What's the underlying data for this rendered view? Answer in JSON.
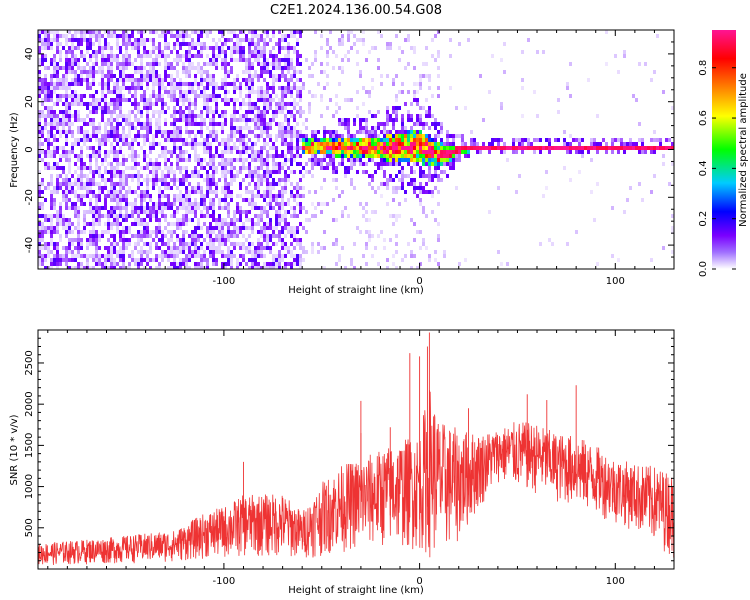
{
  "figure": {
    "title": "C2E1.2024.136.00.54.G08"
  },
  "chart_data": [
    {
      "type": "heatmap",
      "name": "spectrogram",
      "xlabel": "Height of straight line (km)",
      "ylabel": "Frequency (Hz)",
      "xlim": [
        -195,
        130
      ],
      "ylim": [
        -50,
        50
      ],
      "xticks": [
        -100,
        0,
        100
      ],
      "xtick_labels": [
        "-100",
        "0",
        "100"
      ],
      "yticks": [
        -40,
        -20,
        0,
        20,
        40
      ],
      "ytick_labels": [
        "-40",
        "-20",
        "0",
        "20",
        "40"
      ],
      "colorbar": {
        "label": "Normalized spectral amplitude",
        "range": [
          0,
          0.95
        ],
        "ticks": [
          0.0,
          0.2,
          0.4,
          0.6,
          0.8
        ],
        "tick_labels": [
          "0.0",
          "0.2",
          "0.4",
          "0.6",
          "0.8"
        ],
        "colormap": [
          "#ffffff",
          "#7a00ff",
          "#0000ff",
          "#00ccff",
          "#00ff00",
          "#ffff00",
          "#ff8000",
          "#ff0000",
          "#ff1493"
        ]
      },
      "noise_region_x": [
        -195,
        -60
      ],
      "transition_region_x": [
        -60,
        10
      ],
      "signal_trace": {
        "x": [
          -60,
          -50,
          -40,
          -30,
          -20,
          -10,
          0,
          10,
          15,
          20,
          30,
          60,
          100,
          130
        ],
        "freq": [
          1,
          1,
          1,
          1,
          0.5,
          1,
          1,
          -2,
          -2,
          0,
          1,
          1,
          1,
          1
        ],
        "spread": [
          3,
          3,
          4,
          4,
          5,
          6,
          7,
          5,
          3,
          2,
          1.2,
          1,
          1,
          1
        ]
      }
    },
    {
      "type": "line",
      "name": "snr",
      "xlabel": "Height of straight line (km)",
      "ylabel": "SNR (10 * v/v)",
      "xlim": [
        -195,
        130
      ],
      "ylim": [
        0,
        2900
      ],
      "xticks": [
        -100,
        0,
        100
      ],
      "xtick_labels": [
        "-100",
        "0",
        "100"
      ],
      "yticks": [
        500,
        1000,
        1500,
        2000,
        2500
      ],
      "ytick_labels": [
        "500",
        "1000",
        "1500",
        "2000",
        "2500"
      ],
      "line_color": "#ee3333",
      "envelope": {
        "x": [
          -195,
          -160,
          -125,
          -110,
          -100,
          -90,
          -70,
          -60,
          -50,
          -40,
          -30,
          -20,
          -10,
          0,
          5,
          10,
          20,
          30,
          40,
          50,
          60,
          70,
          80,
          90,
          100,
          110,
          120,
          130
        ],
        "upper": [
          310,
          380,
          470,
          680,
          760,
          900,
          920,
          700,
          1050,
          1260,
          1350,
          1450,
          1560,
          1650,
          2250,
          1800,
          1700,
          1650,
          1700,
          1800,
          1760,
          1650,
          1620,
          1500,
          1350,
          1280,
          1250,
          1150
        ],
        "lower": [
          40,
          60,
          80,
          120,
          120,
          140,
          130,
          120,
          150,
          200,
          220,
          250,
          250,
          200,
          120,
          150,
          300,
          700,
          1050,
          950,
          900,
          800,
          750,
          650,
          550,
          450,
          300,
          120
        ]
      },
      "peaks": [
        {
          "x": 5,
          "y": 2870
        },
        {
          "x": 4,
          "y": 2700
        },
        {
          "x": -5,
          "y": 2620
        },
        {
          "x": 0,
          "y": 2580
        },
        {
          "x": 80,
          "y": 2230
        },
        {
          "x": 55,
          "y": 2120
        },
        {
          "x": 65,
          "y": 2050
        },
        {
          "x": -30,
          "y": 2040
        },
        {
          "x": -90,
          "y": 1300
        },
        {
          "x": -30,
          "y": 1650
        },
        {
          "x": -15,
          "y": 1720
        },
        {
          "x": 25,
          "y": 1950
        }
      ]
    }
  ]
}
